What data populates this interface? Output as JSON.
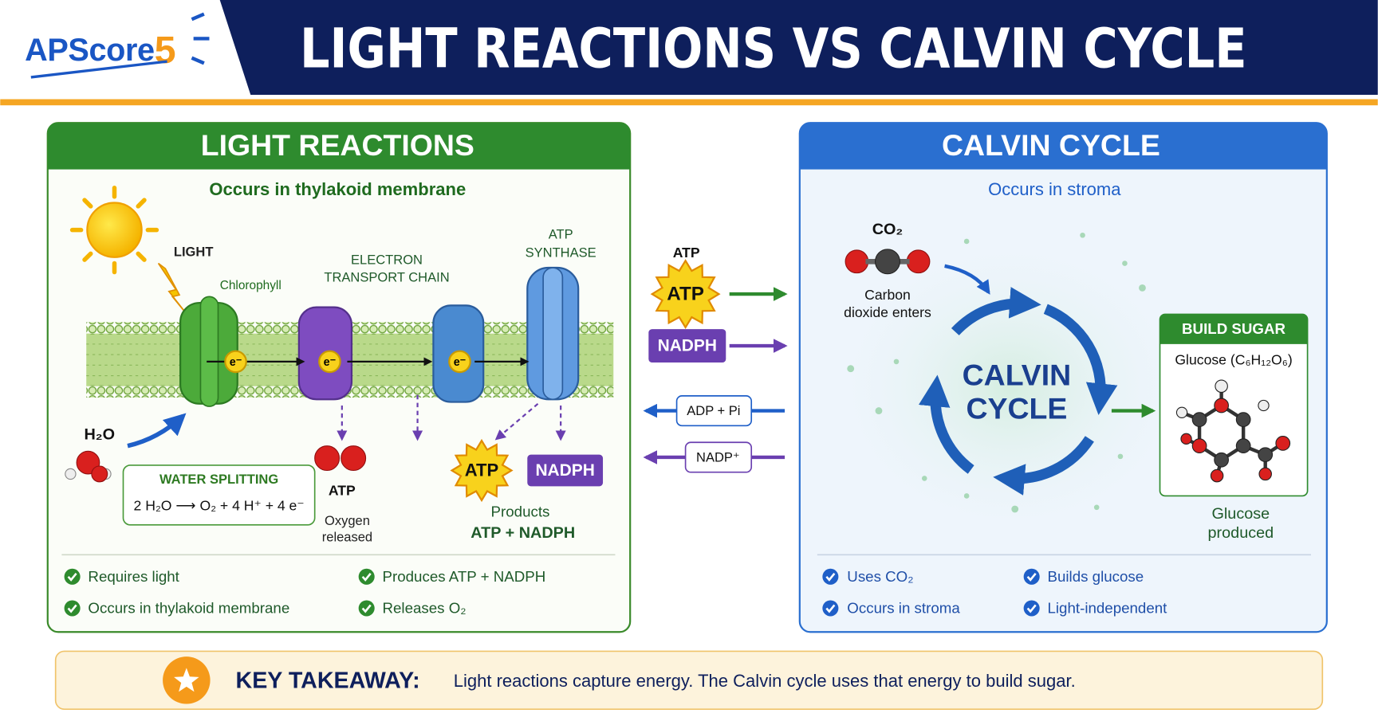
{
  "header": {
    "logo": {
      "text": "APScore",
      "number": "5"
    },
    "title": "LIGHT REACTIONS VS CALVIN CYCLE"
  },
  "light_reactions": {
    "title": "LIGHT REACTIONS",
    "location": "Occurs in thylakoid membrane",
    "light": "LIGHT",
    "chlorophyll": "Chlorophyll",
    "electron_transport_chain": [
      "ELECTRON",
      "TRANSPORT CHAIN"
    ],
    "atp_synthase": [
      "ATP",
      "SYNTHASE"
    ],
    "electrons": [
      "e⁻",
      "e⁻",
      "e⁻"
    ],
    "water": "H₂O",
    "water_splitting": {
      "title": "WATER SPLITTING",
      "equation": "2 H₂O ⟶ O₂ + 4 H⁺ + 4 e⁻"
    },
    "oxygen": {
      "label": "ATP",
      "caption": [
        "Oxygen",
        "released"
      ]
    },
    "products": {
      "atp": "ATP",
      "nadph": "NADPH",
      "caption": [
        "Products",
        "ATP + NADPH"
      ]
    },
    "checklist": [
      "Requires light",
      "Occurs in thylakoid membrane",
      "Produces ATP + NADPH",
      "Releases O₂"
    ]
  },
  "transfer": {
    "atp_label": "ATP",
    "atp": "ATP",
    "nadph": "NADPH",
    "adp": "ADP + Pi",
    "nadp": "NADP⁺"
  },
  "calvin_cycle": {
    "title": "CALVIN CYCLE",
    "location": "Occurs in stroma",
    "co2": "CO₂",
    "co2_caption": [
      "Carbon",
      "dioxide enters"
    ],
    "cycle": [
      "CALVIN",
      "CYCLE"
    ],
    "build_sugar": {
      "title": "BUILD SUGAR",
      "formula": "Glucose (C₆H₁₂O₆)",
      "caption": [
        "Glucose",
        "produced"
      ]
    },
    "checklist": [
      "Uses CO₂",
      "Occurs in stroma",
      "Builds glucose",
      "Light-independent"
    ]
  },
  "footer": {
    "label": "KEY TAKEAWAY:",
    "text": "Light reactions capture energy. The Calvin cycle uses that energy to build sugar."
  }
}
